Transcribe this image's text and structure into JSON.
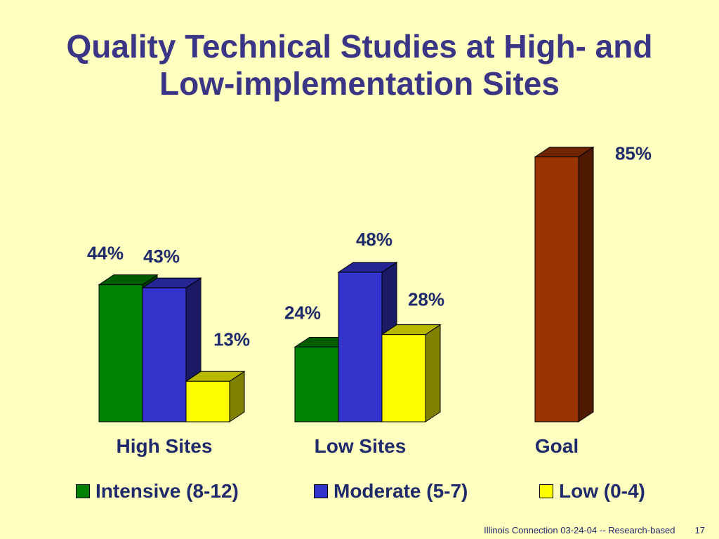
{
  "slide": {
    "title_line1": "Quality Technical Studies at High- and",
    "title_line2": "Low-implementation Sites",
    "footer_text": "Illinois Connection 03-24-04 -- Research-based",
    "page_number": "17"
  },
  "chart_data": {
    "type": "bar",
    "style": "3d-clustered",
    "categories": [
      "High Sites",
      "Low Sites",
      "Goal"
    ],
    "series": [
      {
        "name": "Intensive (8-12)",
        "color": "#008000",
        "values": [
          44,
          24,
          null
        ],
        "labels": [
          "44%",
          "24%",
          ""
        ]
      },
      {
        "name": "Moderate (5-7)",
        "color": "#3333CC",
        "values": [
          43,
          48,
          null
        ],
        "labels": [
          "43%",
          "48%",
          ""
        ]
      },
      {
        "name": "Low (0-4)",
        "color": "#FFFF00",
        "values": [
          13,
          28,
          null
        ],
        "labels": [
          "13%",
          "28%",
          ""
        ]
      }
    ],
    "goal": {
      "value": 85,
      "label": "85%",
      "color": "#993300"
    },
    "ylim": [
      0,
      100
    ],
    "grid": false,
    "legend_placement": "bottom"
  }
}
